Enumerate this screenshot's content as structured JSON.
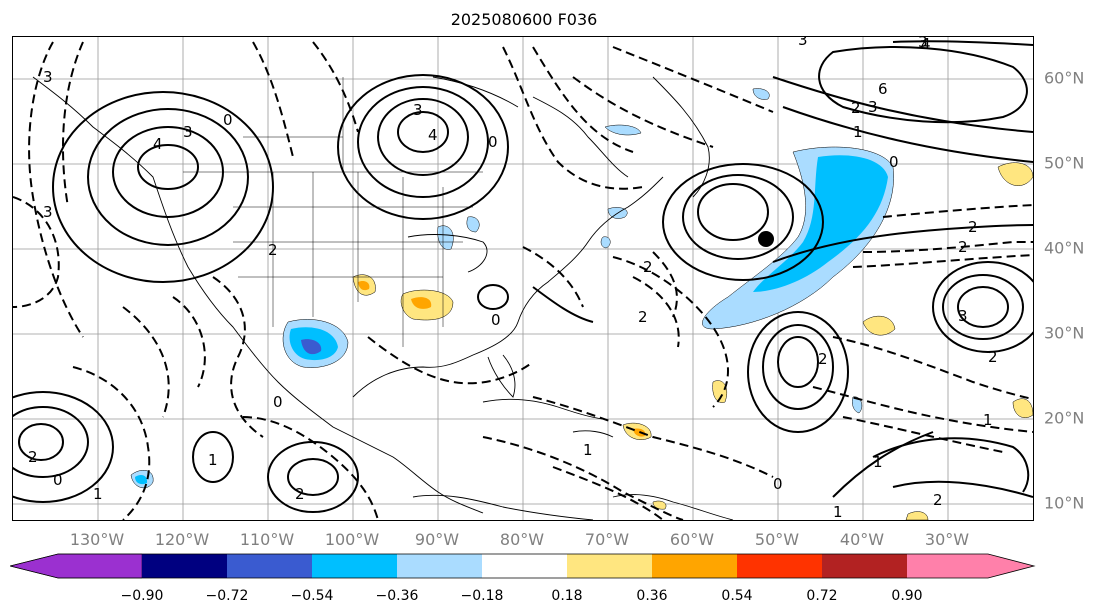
{
  "title": "2025080600 F036",
  "longitude_labels": [
    "130°W",
    "120°W",
    "110°W",
    "100°W",
    "90°W",
    "80°W",
    "70°W",
    "60°W",
    "50°W",
    "40°W",
    "30°W"
  ],
  "latitude_labels": [
    "60°N",
    "50°N",
    "40°N",
    "30°N",
    "20°N",
    "10°N"
  ],
  "colorbar": {
    "ticks": [
      "−0.90",
      "−0.72",
      "−0.54",
      "−0.36",
      "−0.18",
      "0.18",
      "0.36",
      "0.54",
      "0.72",
      "0.90"
    ],
    "colors": [
      "#9b30d0",
      "#000080",
      "#3a5bd0",
      "#00bfff",
      "#aadcff",
      "#ffffff",
      "#ffe680",
      "#ffa500",
      "#ff3300",
      "#b22222",
      "#ff80aa"
    ]
  },
  "contour_labels": [
    "3",
    "3",
    "4",
    "0",
    "2",
    "4",
    "3",
    "3",
    "3",
    "6",
    "4",
    "3",
    "2",
    "2",
    "2",
    "1",
    "0",
    "2",
    "2",
    "3",
    "0",
    "0",
    "2",
    "2",
    "1",
    "0",
    "1",
    "1",
    "2",
    "1",
    "2",
    "1",
    "1",
    "0",
    "2",
    "0",
    "3"
  ]
}
